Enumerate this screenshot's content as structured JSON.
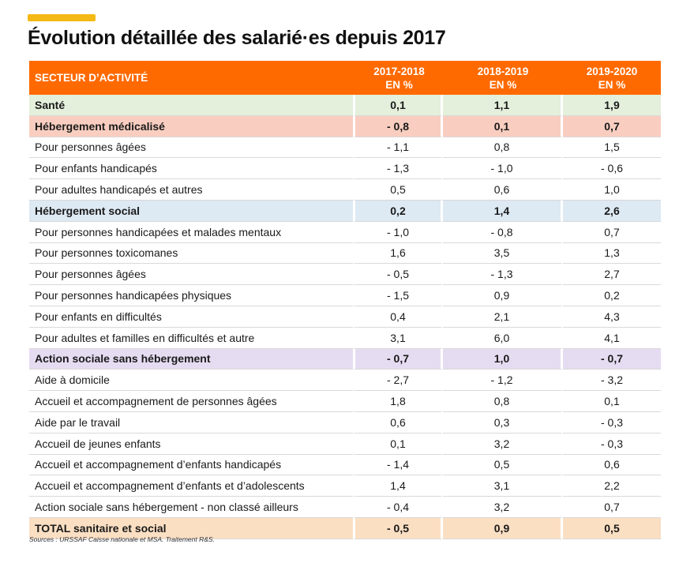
{
  "colors": {
    "accent_bar": "#f5b915",
    "header_bg": "#ff6a00",
    "sante_bg": "#e4efdc",
    "hebergement_medicalise_bg": "#f9cec0",
    "hebergement_social_bg": "#dde9f3",
    "action_sociale_bg": "#e6dcf2",
    "total_bg": "#fbdfc3"
  },
  "title": "Évolution détaillée des salarié·es depuis 2017",
  "table": {
    "header": {
      "sector": "SECTEUR D’ACTIVITÉ",
      "col1_line1": "2017-2018",
      "col1_line2": "EN %",
      "col2_line1": "2018-2019",
      "col2_line2": "EN %",
      "col3_line1": "2019-2020",
      "col3_line2": "EN %"
    },
    "rows": [
      {
        "label": "Santé",
        "v1": "0,1",
        "v2": "1,1",
        "v3": "1,9",
        "style": "sante"
      },
      {
        "label": "Hébergement médicalisé",
        "v1": "- 0,8",
        "v2": "0,1",
        "v3": "0,7",
        "style": "hebergement_medicalise"
      },
      {
        "label": "Pour personnes âgées",
        "v1": "- 1,1",
        "v2": "0,8",
        "v3": "1,5",
        "style": ""
      },
      {
        "label": "Pour enfants handicapés",
        "v1": "- 1,3",
        "v2": "- 1,0",
        "v3": "- 0,6",
        "style": ""
      },
      {
        "label": "Pour adultes handicapés et autres",
        "v1": "0,5",
        "v2": "0,6",
        "v3": "1,0",
        "style": ""
      },
      {
        "label": "Hébergement social",
        "v1": "0,2",
        "v2": "1,4",
        "v3": "2,6",
        "style": "hebergement_social"
      },
      {
        "label": "Pour personnes handicapées et malades mentaux",
        "v1": "- 1,0",
        "v2": "- 0,8",
        "v3": "0,7",
        "style": ""
      },
      {
        "label": "Pour personnes toxicomanes",
        "v1": "1,6",
        "v2": "3,5",
        "v3": "1,3",
        "style": ""
      },
      {
        "label": "Pour personnes âgées",
        "v1": "- 0,5",
        "v2": "- 1,3",
        "v3": "2,7",
        "style": ""
      },
      {
        "label": "Pour personnes handicapées physiques",
        "v1": "- 1,5",
        "v2": "0,9",
        "v3": "0,2",
        "style": ""
      },
      {
        "label": "Pour enfants en difficultés",
        "v1": "0,4",
        "v2": "2,1",
        "v3": "4,3",
        "style": ""
      },
      {
        "label": "Pour adultes et familles en difficultés et autre",
        "v1": "3,1",
        "v2": "6,0",
        "v3": "4,1",
        "style": ""
      },
      {
        "label": "Action sociale sans hébergement",
        "v1": "- 0,7",
        "v2": "1,0",
        "v3": "- 0,7",
        "style": "action_sociale"
      },
      {
        "label": "Aide à domicile",
        "v1": "- 2,7",
        "v2": "- 1,2",
        "v3": "- 3,2",
        "style": ""
      },
      {
        "label": "Accueil et accompagnement de personnes âgées",
        "v1": "1,8",
        "v2": "0,8",
        "v3": "0,1",
        "style": ""
      },
      {
        "label": "Aide par le travail",
        "v1": "0,6",
        "v2": "0,3",
        "v3": "- 0,3",
        "style": ""
      },
      {
        "label": "Accueil de jeunes enfants",
        "v1": "0,1",
        "v2": "3,2",
        "v3": "- 0,3",
        "style": ""
      },
      {
        "label": "Accueil et accompagnement d’enfants handicapés",
        "v1": "- 1,4",
        "v2": "0,5",
        "v3": "0,6",
        "style": ""
      },
      {
        "label": "Accueil et accompagnement d’enfants et d’adolescents",
        "v1": "1,4",
        "v2": "3,1",
        "v3": "2,2",
        "style": ""
      },
      {
        "label": "Action sociale sans hébergement - non classé ailleurs",
        "v1": "- 0,4",
        "v2": "3,2",
        "v3": "0,7",
        "style": ""
      },
      {
        "label": "TOTAL sanitaire et social",
        "v1": "- 0,5",
        "v2": "0,9",
        "v3": "0,5",
        "style": "total"
      }
    ]
  },
  "sources": "Sources : URSSAF Caisse nationale et MSA. Traitement R&S."
}
